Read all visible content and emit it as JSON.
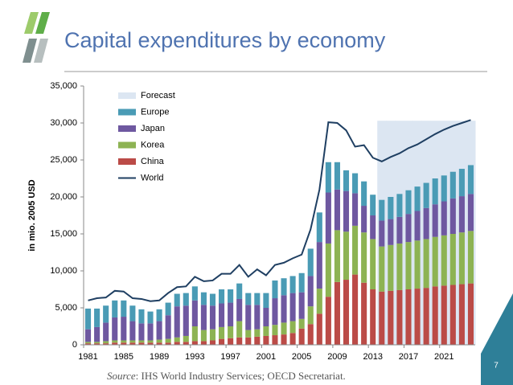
{
  "chart_data": {
    "type": "bar",
    "title": "Capital expenditures by economy",
    "y_label": "in mio. 2005 USD",
    "source_label": "Source",
    "source_text": ": IHS World Industry Services; OECD Secretariat.",
    "page_number": "7",
    "categories": [
      "1981",
      null,
      null,
      null,
      "1985",
      null,
      null,
      null,
      "1989",
      null,
      null,
      null,
      "1993",
      null,
      null,
      null,
      "1997",
      null,
      null,
      null,
      "2001",
      null,
      null,
      null,
      "2005",
      null,
      null,
      null,
      "2009",
      null,
      null,
      null,
      "2013",
      null,
      null,
      null,
      "2017",
      null,
      null,
      null,
      "2021",
      null,
      null,
      null
    ],
    "ylim": [
      0,
      35000
    ],
    "yticks": [
      0,
      {
        "value": 5000,
        "label": "5,000"
      },
      {
        "value": 10000,
        "label": "10,000"
      },
      {
        "value": 15000,
        "label": "15,000"
      },
      {
        "value": 20000,
        "label": "20,000"
      },
      {
        "value": 25000,
        "label": "25,000"
      },
      {
        "value": 30000,
        "label": "30,000"
      },
      {
        "value": 35000,
        "label": "35,000"
      }
    ],
    "legend": "upper left",
    "series": [
      {
        "name": "Forecast",
        "type": "area",
        "color": "#dce6f2",
        "values": [
          null,
          null,
          null,
          null,
          null,
          null,
          null,
          null,
          null,
          null,
          null,
          null,
          null,
          null,
          null,
          null,
          null,
          null,
          null,
          null,
          null,
          null,
          null,
          null,
          null,
          null,
          null,
          null,
          null,
          null,
          null,
          null,
          null,
          30300,
          30300,
          30300,
          30300,
          30300,
          30300,
          30300,
          30300,
          30300,
          30300,
          30300
        ]
      },
      {
        "name": "Europe",
        "type": "bar",
        "color": "#4a9bb5",
        "values": [
          2800,
          2500,
          2300,
          2300,
          2200,
          2100,
          1900,
          1600,
          1600,
          1700,
          1700,
          1700,
          1900,
          1700,
          1600,
          1900,
          1800,
          2100,
          1600,
          1600,
          2000,
          2400,
          2300,
          2300,
          2600,
          3700,
          4000,
          4100,
          3700,
          2800,
          2700,
          3300,
          2800,
          2800,
          3000,
          3100,
          3200,
          3300,
          3400,
          3500,
          3500,
          3600,
          3700,
          3900
        ]
      },
      {
        "name": "Japan",
        "type": "bar",
        "color": "#6e58a0",
        "values": [
          1700,
          2000,
          2500,
          3100,
          3200,
          2600,
          2300,
          2300,
          2500,
          3200,
          4200,
          4100,
          3500,
          3400,
          3200,
          3200,
          3200,
          3000,
          3400,
          3300,
          2500,
          3600,
          3700,
          3800,
          3600,
          4100,
          6300,
          6900,
          5500,
          5500,
          4400,
          3600,
          3200,
          3500,
          3500,
          3600,
          3800,
          4000,
          4200,
          4400,
          4600,
          4800,
          4900,
          5000
        ]
      },
      {
        "name": "Korea",
        "type": "bar",
        "color": "#8db353",
        "values": [
          200,
          200,
          300,
          300,
          300,
          300,
          300,
          300,
          400,
          500,
          600,
          800,
          2000,
          1500,
          1500,
          1600,
          1600,
          2200,
          1000,
          1000,
          1300,
          1400,
          1600,
          1600,
          1300,
          2400,
          3400,
          7200,
          7000,
          6500,
          6600,
          6800,
          6800,
          6100,
          6200,
          6300,
          6400,
          6500,
          6600,
          6700,
          6800,
          6900,
          7000,
          7100
        ]
      },
      {
        "name": "China",
        "type": "bar",
        "color": "#bb4b47",
        "values": [
          200,
          200,
          200,
          300,
          300,
          300,
          300,
          300,
          300,
          300,
          400,
          400,
          500,
          500,
          600,
          800,
          900,
          1000,
          1000,
          1100,
          1200,
          1300,
          1400,
          1600,
          2200,
          2800,
          4200,
          6500,
          8500,
          8800,
          9500,
          8400,
          7500,
          7200,
          7300,
          7400,
          7500,
          7600,
          7700,
          7900,
          8000,
          8100,
          8200,
          8300
        ]
      },
      {
        "name": "World",
        "type": "line",
        "color": "#1f3f62",
        "values": [
          6000,
          6300,
          6400,
          7300,
          7200,
          6300,
          6200,
          5900,
          6000,
          7000,
          7800,
          7900,
          9200,
          8600,
          8700,
          9600,
          9600,
          10800,
          9200,
          10200,
          9400,
          10800,
          11100,
          11700,
          12200,
          15600,
          21000,
          30100,
          30000,
          29000,
          26800,
          27000,
          25300,
          24800,
          25400,
          25900,
          26600,
          27100,
          27800,
          28500,
          29100,
          29600,
          30000,
          30400
        ]
      }
    ]
  }
}
